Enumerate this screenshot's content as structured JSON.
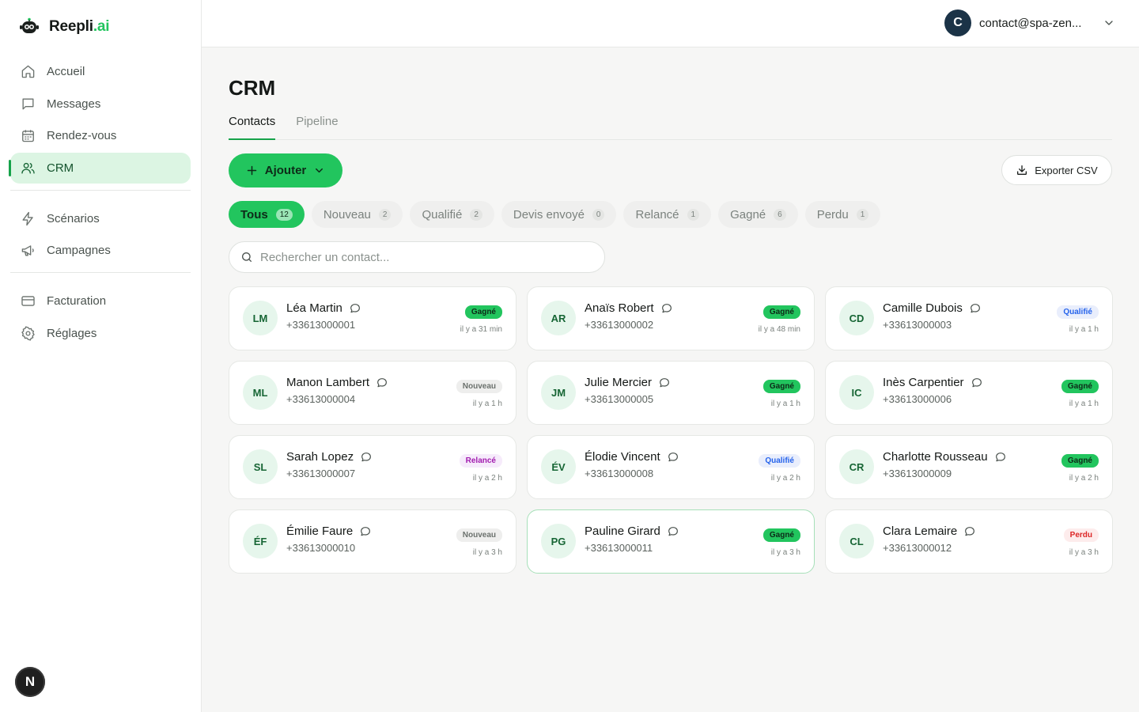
{
  "brand": {
    "name_main": "Reepli",
    "name_accent": ".ai"
  },
  "nav": {
    "main": [
      {
        "label": "Accueil",
        "icon": "home-icon"
      },
      {
        "label": "Messages",
        "icon": "message-icon"
      },
      {
        "label": "Rendez-vous",
        "icon": "calendar-icon"
      },
      {
        "label": "CRM",
        "icon": "users-icon",
        "active": true
      }
    ],
    "automation": [
      {
        "label": "Scénarios",
        "icon": "bolt-icon"
      },
      {
        "label": "Campagnes",
        "icon": "megaphone-icon"
      }
    ],
    "settings": [
      {
        "label": "Facturation",
        "icon": "credit-card-icon"
      },
      {
        "label": "Réglages",
        "icon": "gear-icon"
      }
    ]
  },
  "next_badge": "N",
  "account": {
    "initial": "C",
    "email": "contact@spa-zen..."
  },
  "page": {
    "title": "CRM"
  },
  "tabs": [
    {
      "label": "Contacts",
      "active": true
    },
    {
      "label": "Pipeline",
      "active": false
    }
  ],
  "actions": {
    "add_label": "Ajouter",
    "export_label": "Exporter CSV"
  },
  "filters": [
    {
      "label": "Tous",
      "count": "12",
      "active": true
    },
    {
      "label": "Nouveau",
      "count": "2"
    },
    {
      "label": "Qualifié",
      "count": "2"
    },
    {
      "label": "Devis envoyé",
      "count": "0"
    },
    {
      "label": "Relancé",
      "count": "1"
    },
    {
      "label": "Gagné",
      "count": "6"
    },
    {
      "label": "Perdu",
      "count": "1"
    }
  ],
  "search": {
    "placeholder": "Rechercher un contact..."
  },
  "contacts": [
    {
      "initials": "LM",
      "name": "Léa Martin",
      "phone": "+33613000001",
      "status": "Gagné",
      "status_key": "gagne",
      "time": "il y a 31 min"
    },
    {
      "initials": "AR",
      "name": "Anaïs Robert",
      "phone": "+33613000002",
      "status": "Gagné",
      "status_key": "gagne",
      "time": "il y a 48 min"
    },
    {
      "initials": "CD",
      "name": "Camille Dubois",
      "phone": "+33613000003",
      "status": "Qualifié",
      "status_key": "qualifie",
      "time": "il y a 1 h"
    },
    {
      "initials": "ML",
      "name": "Manon Lambert",
      "phone": "+33613000004",
      "status": "Nouveau",
      "status_key": "nouveau",
      "time": "il y a 1 h"
    },
    {
      "initials": "JM",
      "name": "Julie Mercier",
      "phone": "+33613000005",
      "status": "Gagné",
      "status_key": "gagne",
      "time": "il y a 1 h"
    },
    {
      "initials": "IC",
      "name": "Inès Carpentier",
      "phone": "+33613000006",
      "status": "Gagné",
      "status_key": "gagne",
      "time": "il y a 1 h"
    },
    {
      "initials": "SL",
      "name": "Sarah Lopez",
      "phone": "+33613000007",
      "status": "Relancé",
      "status_key": "relance",
      "time": "il y a 2 h"
    },
    {
      "initials": "ÉV",
      "name": "Élodie Vincent",
      "phone": "+33613000008",
      "status": "Qualifié",
      "status_key": "qualifie",
      "time": "il y a 2 h"
    },
    {
      "initials": "CR",
      "name": "Charlotte Rousseau",
      "phone": "+33613000009",
      "status": "Gagné",
      "status_key": "gagne",
      "time": "il y a 2 h"
    },
    {
      "initials": "ÉF",
      "name": "Émilie Faure",
      "phone": "+33613000010",
      "status": "Nouveau",
      "status_key": "nouveau",
      "time": "il y a 3 h"
    },
    {
      "initials": "PG",
      "name": "Pauline Girard",
      "phone": "+33613000011",
      "status": "Gagné",
      "status_key": "gagne",
      "time": "il y a 3 h",
      "highlighted": true
    },
    {
      "initials": "CL",
      "name": "Clara Lemaire",
      "phone": "+33613000012",
      "status": "Perdu",
      "status_key": "perdu",
      "time": "il y a 3 h"
    }
  ]
}
